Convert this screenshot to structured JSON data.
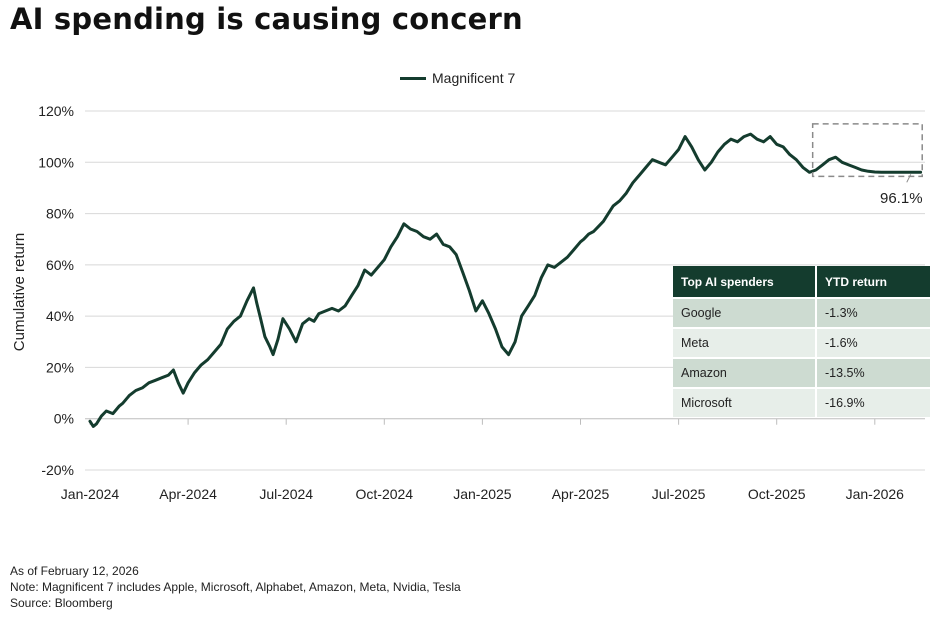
{
  "title": "AI spending is causing concern",
  "legend": {
    "label": "Magnificent 7"
  },
  "colors": {
    "series": "#143c2e",
    "grid": "#d8d8d8",
    "table_header": "#143c2e",
    "table_row_a": "#cddbd1",
    "table_row_b": "#e7eee9",
    "callout_box": "#8a8a8a"
  },
  "chart_data": {
    "type": "line",
    "title": "AI spending is causing concern",
    "xlabel": "",
    "ylabel": "Cumulative return",
    "y_ticks": [
      -20,
      0,
      20,
      40,
      60,
      80,
      100,
      120
    ],
    "y_tick_labels": [
      "-20%",
      "0%",
      "20%",
      "40%",
      "60%",
      "80%",
      "100%",
      "120%"
    ],
    "ylim": [
      -20,
      120
    ],
    "xlim": [
      "Jan-2024",
      "Feb-2026"
    ],
    "x_tick_labels": [
      "Jan-2024",
      "Apr-2024",
      "Jul-2024",
      "Oct-2024",
      "Jan-2025",
      "Apr-2025",
      "Jul-2025",
      "Oct-2025",
      "Jan-2026"
    ],
    "grid": true,
    "legend_position": "top-center",
    "series": [
      {
        "name": "Magnificent 7",
        "x_month_index": [
          0,
          0.1,
          0.2,
          0.35,
          0.5,
          0.7,
          0.9,
          1.0,
          1.2,
          1.4,
          1.6,
          1.8,
          2.0,
          2.2,
          2.4,
          2.55,
          2.7,
          2.85,
          3.0,
          3.2,
          3.4,
          3.6,
          3.8,
          4.0,
          4.2,
          4.4,
          4.6,
          4.8,
          5.0,
          5.1,
          5.2,
          5.35,
          5.5,
          5.6,
          5.75,
          5.9,
          6.1,
          6.3,
          6.5,
          6.7,
          6.85,
          7.0,
          7.2,
          7.4,
          7.6,
          7.8,
          8.0,
          8.2,
          8.4,
          8.6,
          8.8,
          9.0,
          9.2,
          9.4,
          9.6,
          9.8,
          10.0,
          10.2,
          10.4,
          10.6,
          10.8,
          11.0,
          11.2,
          11.4,
          11.6,
          11.8,
          12.0,
          12.2,
          12.4,
          12.6,
          12.8,
          13.0,
          13.2,
          13.4,
          13.6,
          13.8,
          14.0,
          14.2,
          14.4,
          14.6,
          14.8,
          15.0,
          15.1,
          15.25,
          15.4,
          15.55,
          15.7,
          15.85,
          16.0,
          16.2,
          16.4,
          16.6,
          16.8,
          17.0,
          17.2,
          17.4,
          17.6,
          17.8,
          18.0,
          18.2,
          18.4,
          18.6,
          18.8,
          19.0,
          19.2,
          19.4,
          19.6,
          19.8,
          20.0,
          20.2,
          20.4,
          20.6,
          20.8,
          21.0,
          21.2,
          21.4,
          21.6,
          21.8,
          22.0,
          22.2,
          22.4,
          22.6,
          22.8,
          23.0,
          23.2,
          23.4,
          23.6,
          23.8,
          24.0,
          24.2,
          24.4,
          24.6,
          24.8,
          25.0,
          25.2,
          25.4
        ],
        "values": [
          -1,
          -3,
          -2,
          1,
          3,
          2,
          5,
          6,
          9,
          11,
          12,
          14,
          15,
          16,
          17,
          19,
          14,
          10,
          14,
          18,
          21,
          23,
          26,
          29,
          35,
          38,
          40,
          46,
          51,
          45,
          40,
          32,
          28,
          25,
          31,
          39,
          35,
          30,
          37,
          39,
          38,
          41,
          42,
          43,
          42,
          44,
          48,
          52,
          58,
          56,
          59,
          62,
          67,
          71,
          76,
          74,
          73,
          71,
          70,
          72,
          68,
          67,
          64,
          57,
          50,
          42,
          46,
          41,
          35,
          28,
          25,
          30,
          40,
          44,
          48,
          55,
          60,
          59,
          61,
          63,
          66,
          69,
          70,
          72,
          73,
          75,
          77,
          80,
          83,
          85,
          88,
          92,
          95,
          98,
          101,
          100,
          99,
          102,
          105,
          110,
          106,
          101,
          97,
          100,
          104,
          107,
          109,
          108,
          110,
          111,
          109,
          108,
          110,
          107,
          106,
          103,
          101,
          98,
          96.1,
          97,
          99,
          101,
          102,
          100,
          99,
          98,
          97,
          96.5,
          96.2,
          96.1,
          96.1,
          96.1,
          96.1,
          96.1,
          96.1,
          96.1,
          96.1
        ]
      }
    ],
    "annotations": [
      {
        "text": "96.1%",
        "target": "last value"
      }
    ]
  },
  "table": {
    "headers": [
      "Top AI spenders",
      "YTD return"
    ],
    "rows": [
      [
        "Google",
        "-1.3%"
      ],
      [
        "Meta",
        "-1.6%"
      ],
      [
        "Amazon",
        "-13.5%"
      ],
      [
        "Microsoft",
        "-16.9%"
      ]
    ]
  },
  "footnotes": {
    "as_of": "As of February 12, 2026",
    "note": "Note: Magnificent 7 includes Apple, Microsoft, Alphabet, Amazon, Meta, Nvidia, Tesla",
    "source": "Source: Bloomberg"
  }
}
